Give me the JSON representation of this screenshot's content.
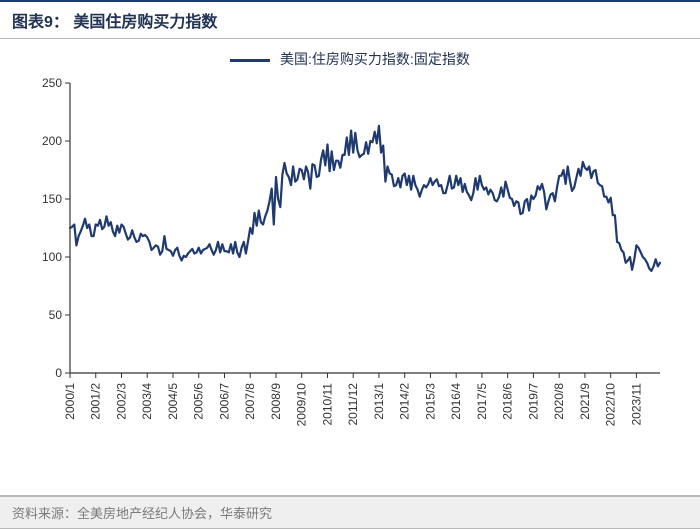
{
  "title": "图表9：  美国住房购买力指数",
  "legend_label": "美国:住房购买力指数:固定指数",
  "source_text": "资料来源：全美房地产经纪人协会，华泰研究",
  "chart": {
    "type": "line",
    "line_color": "#1f3a6e",
    "line_width": 2.2,
    "axis_color": "#333333",
    "tick_color": "#333333",
    "tick_label_color": "#333333",
    "background_color": "#ffffff",
    "title_fontsize": 16,
    "label_fontsize": 12,
    "ylim": [
      0,
      250
    ],
    "ytick_step": 50,
    "yticks": [
      0,
      50,
      100,
      150,
      200,
      250
    ],
    "x_labels": [
      "2000/1",
      "2001/2",
      "2002/3",
      "2003/4",
      "2004/5",
      "2005/6",
      "2006/7",
      "2007/8",
      "2008/9",
      "2009/10",
      "2010/11",
      "2011/12",
      "2013/1",
      "2014/2",
      "2015/3",
      "2016/4",
      "2017/5",
      "2018/6",
      "2019/7",
      "2020/8",
      "2021/9",
      "2022/10",
      "2023/11"
    ],
    "values": [
      125,
      126,
      128,
      110,
      118,
      122,
      127,
      133,
      125,
      128,
      118,
      118,
      128,
      127,
      132,
      124,
      126,
      135,
      127,
      130,
      122,
      118,
      127,
      121,
      128,
      126,
      120,
      115,
      117,
      123,
      117,
      113,
      114,
      120,
      118,
      119,
      117,
      113,
      106,
      108,
      110,
      109,
      102,
      105,
      118,
      107,
      106,
      105,
      101,
      106,
      108,
      101,
      97,
      101,
      100,
      103,
      105,
      107,
      103,
      104,
      108,
      103,
      106,
      107,
      108,
      111,
      106,
      102,
      106,
      113,
      104,
      111,
      105,
      105,
      104,
      111,
      103,
      113,
      104,
      100,
      108,
      113,
      103,
      114,
      125,
      120,
      138,
      127,
      140,
      130,
      128,
      135,
      140,
      148,
      159,
      128,
      169,
      150,
      143,
      171,
      181,
      172,
      169,
      162,
      178,
      165,
      167,
      176,
      175,
      167,
      178,
      173,
      159,
      180,
      179,
      169,
      170,
      184,
      192,
      179,
      197,
      174,
      191,
      175,
      183,
      183,
      177,
      188,
      188,
      203,
      188,
      209,
      190,
      207,
      192,
      186,
      188,
      189,
      199,
      189,
      200,
      199,
      208,
      198,
      213,
      190,
      196,
      165,
      178,
      172,
      171,
      161,
      162,
      168,
      160,
      170,
      172,
      162,
      170,
      158,
      170,
      162,
      158,
      152,
      158,
      162,
      160,
      163,
      168,
      162,
      165,
      167,
      161,
      162,
      155,
      155,
      162,
      170,
      159,
      160,
      170,
      162,
      168,
      156,
      163,
      156,
      153,
      149,
      155,
      168,
      158,
      170,
      162,
      158,
      160,
      154,
      158,
      155,
      149,
      148,
      152,
      160,
      152,
      165,
      158,
      151,
      150,
      144,
      148,
      147,
      137,
      138,
      148,
      150,
      140,
      153,
      150,
      153,
      161,
      158,
      163,
      156,
      141,
      148,
      154,
      155,
      148,
      160,
      170,
      170,
      175,
      163,
      178,
      166,
      157,
      160,
      168,
      176,
      170,
      182,
      177,
      175,
      178,
      168,
      174,
      175,
      164,
      162,
      161,
      152,
      152,
      147,
      151,
      136,
      136,
      113,
      112,
      106,
      104,
      95,
      97,
      100,
      89,
      98,
      110,
      108,
      104,
      100,
      98,
      95,
      90,
      88,
      92,
      98,
      92,
      95
    ]
  }
}
